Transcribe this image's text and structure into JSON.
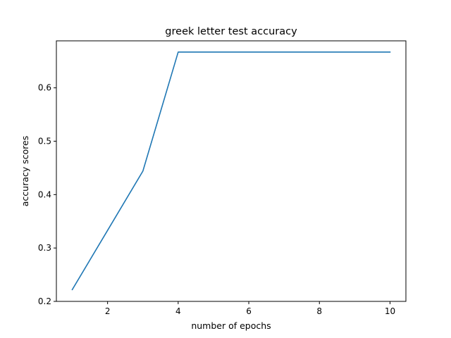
{
  "chart_data": {
    "type": "line",
    "title": "greek letter test accuracy",
    "xlabel": "number of epochs",
    "ylabel": "accuracy scores",
    "xlim": [
      0.55,
      10.45
    ],
    "ylim": [
      0.2,
      0.688
    ],
    "xticks": [
      2,
      4,
      6,
      8,
      10
    ],
    "yticks": [
      0.2,
      0.3,
      0.4,
      0.5,
      0.6
    ],
    "grid": false,
    "series": [
      {
        "color": "#1f77b4",
        "x": [
          1,
          2,
          3,
          4,
          5,
          6,
          7,
          8,
          9,
          10
        ],
        "y": [
          0.222,
          0.333,
          0.444,
          0.667,
          0.667,
          0.667,
          0.667,
          0.667,
          0.667,
          0.667
        ]
      }
    ]
  }
}
